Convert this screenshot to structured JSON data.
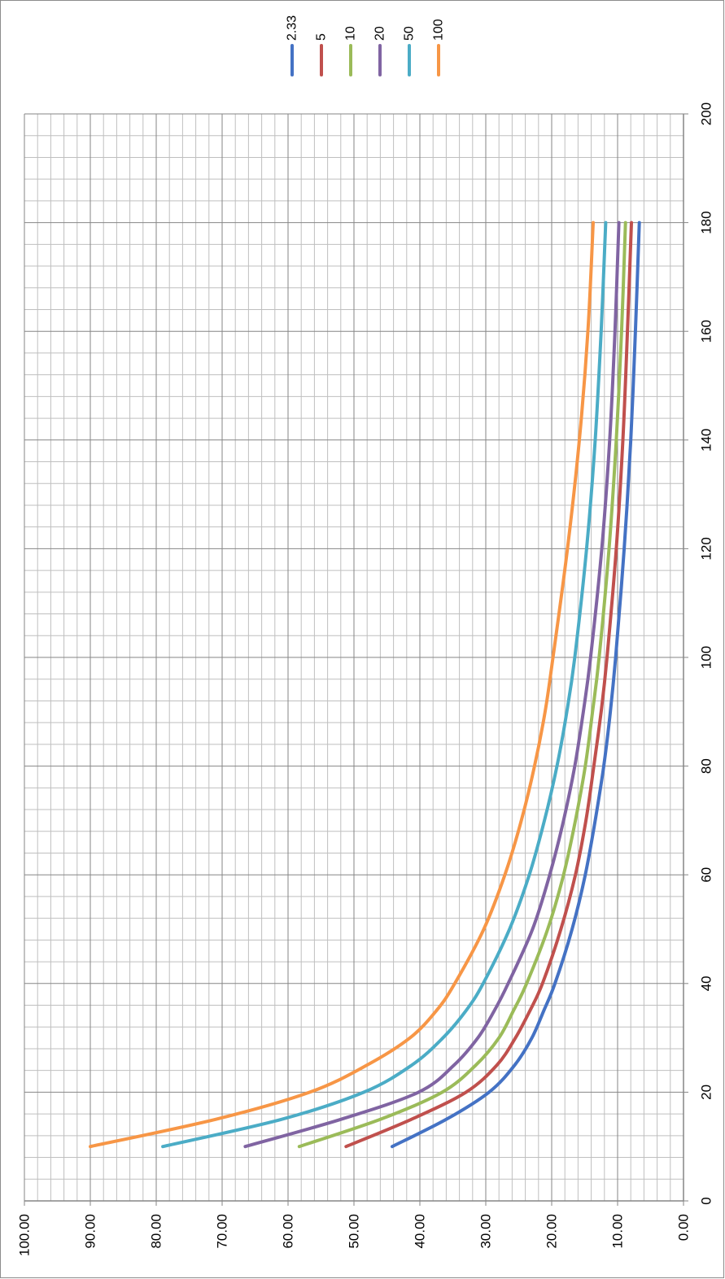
{
  "chart_data": {
    "type": "line",
    "title": "",
    "xlabel": "",
    "ylabel": "",
    "xlim": [
      0,
      200
    ],
    "ylim": [
      0,
      100
    ],
    "x_ticks": [
      "0",
      "20",
      "40",
      "60",
      "80",
      "100",
      "120",
      "140",
      "160",
      "180",
      "200"
    ],
    "y_ticks": [
      "0.00",
      "10.00",
      "20.00",
      "30.00",
      "40.00",
      "50.00",
      "60.00",
      "70.00",
      "80.00",
      "90.00",
      "100.00"
    ],
    "grid": true,
    "orientation": "rotated 90° clockwise",
    "legend_position": "top",
    "x": [
      10,
      15,
      20,
      25,
      30,
      35,
      40,
      50,
      60,
      70,
      80,
      90,
      100,
      120,
      140,
      160,
      180
    ],
    "series": [
      {
        "name": "2.33",
        "color": "#4472C4",
        "values": [
          44.2,
          36.0,
          29.5,
          25.6,
          23.0,
          21.2,
          19.5,
          16.9,
          14.9,
          13.4,
          12.1,
          11.1,
          10.3,
          9.0,
          8.0,
          7.3,
          6.7
        ]
      },
      {
        "name": "5",
        "color": "#C0504D",
        "values": [
          51.2,
          41.3,
          33.0,
          28.3,
          25.5,
          23.3,
          21.4,
          18.6,
          16.4,
          14.8,
          13.6,
          12.5,
          11.6,
          10.2,
          9.2,
          8.5,
          7.9
        ]
      },
      {
        "name": "10",
        "color": "#9BBB59",
        "values": [
          58.3,
          46.0,
          36.6,
          31.5,
          28.0,
          25.8,
          23.8,
          20.6,
          18.2,
          16.4,
          14.9,
          13.8,
          12.8,
          11.3,
          10.2,
          9.4,
          8.8
        ]
      },
      {
        "name": "20",
        "color": "#8064A2",
        "values": [
          66.5,
          52.0,
          40.2,
          34.8,
          31.2,
          28.7,
          26.6,
          22.9,
          20.3,
          18.2,
          16.5,
          15.2,
          14.1,
          12.4,
          11.2,
          10.4,
          9.8
        ]
      },
      {
        "name": "50",
        "color": "#4BACC6",
        "values": [
          79.0,
          61.0,
          48.5,
          41.2,
          36.5,
          33.0,
          30.4,
          26.4,
          23.4,
          21.1,
          19.2,
          17.7,
          16.5,
          14.7,
          13.4,
          12.5,
          11.8
        ]
      },
      {
        "name": "100",
        "color": "#F79646",
        "values": [
          90.0,
          71.0,
          56.7,
          48.0,
          41.5,
          37.5,
          34.7,
          30.3,
          27.1,
          24.6,
          22.6,
          21.0,
          19.8,
          17.6,
          15.8,
          14.5,
          13.7
        ]
      }
    ]
  }
}
